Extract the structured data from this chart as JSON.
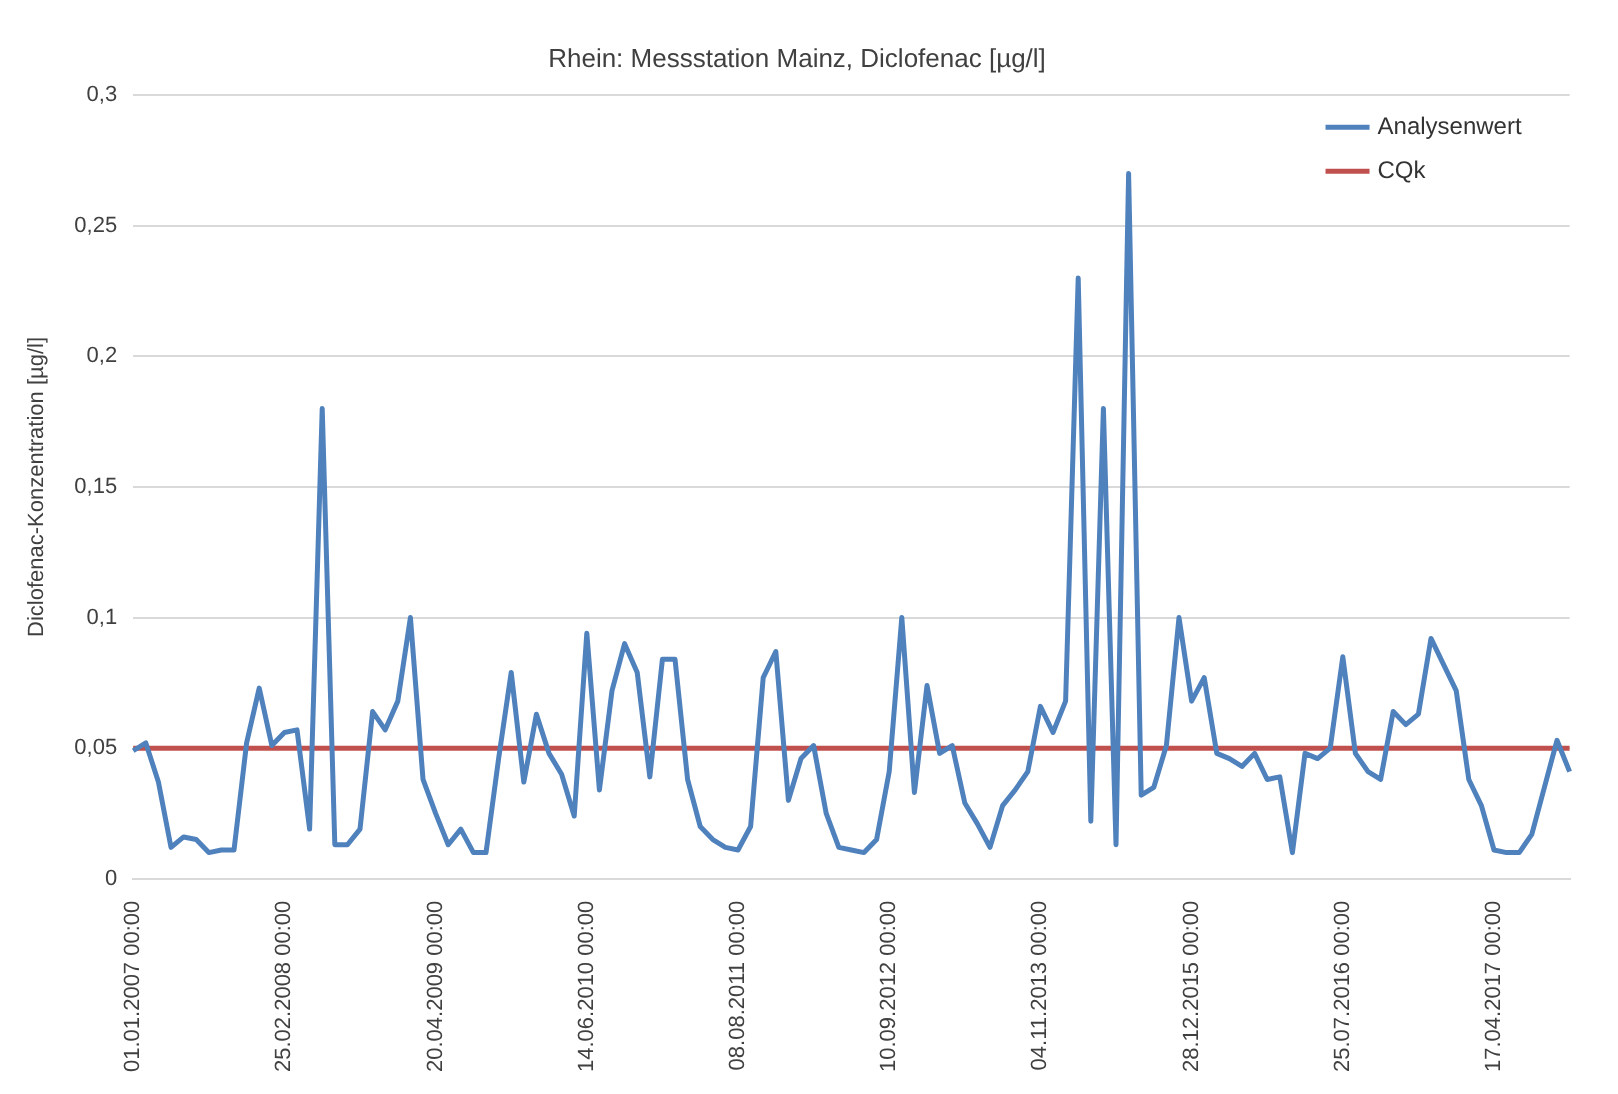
{
  "chart_data": {
    "type": "line",
    "title": "Rhein: Messstation Mainz, Diclofenac [µg/l]",
    "ylabel": "Diclofenac-Konzentration [µg/l]",
    "categories": [
      "01.01.2007 00:00",
      null,
      null,
      null,
      null,
      null,
      null,
      null,
      null,
      null,
      null,
      null,
      "25.02.2008 00:00",
      null,
      null,
      null,
      null,
      null,
      null,
      null,
      null,
      null,
      null,
      null,
      "20.04.2009 00:00",
      null,
      null,
      null,
      null,
      null,
      null,
      null,
      null,
      null,
      null,
      null,
      "14.06.2010 00:00",
      null,
      null,
      null,
      null,
      null,
      null,
      null,
      null,
      null,
      null,
      null,
      "08.08.2011 00:00",
      null,
      null,
      null,
      null,
      null,
      null,
      null,
      null,
      null,
      null,
      null,
      "10.09.2012 00:00",
      null,
      null,
      null,
      null,
      null,
      null,
      null,
      null,
      null,
      null,
      null,
      "04.11.2013 00:00",
      null,
      null,
      null,
      null,
      null,
      null,
      null,
      null,
      null,
      null,
      null,
      "28.12.2015 00:00",
      null,
      null,
      null,
      null,
      null,
      null,
      null,
      null,
      null,
      null,
      null,
      "25.07.2016 00:00",
      null,
      null,
      null,
      null,
      null,
      null,
      null,
      null,
      null,
      null,
      null,
      "17.04.2017 00:00",
      null,
      null,
      null,
      null,
      null,
      null
    ],
    "series": [
      {
        "name": "Analysenwert",
        "color": "#4f81bd",
        "values": [
          0.049,
          0.052,
          0.037,
          0.012,
          0.016,
          0.015,
          0.01,
          0.011,
          0.011,
          0.052,
          0.073,
          0.051,
          0.056,
          0.057,
          0.019,
          0.18,
          0.013,
          0.013,
          0.019,
          0.064,
          0.057,
          0.068,
          0.1,
          0.038,
          0.025,
          0.013,
          0.019,
          0.01,
          0.01,
          0.046,
          0.079,
          0.037,
          0.063,
          0.048,
          0.04,
          0.024,
          0.094,
          0.034,
          0.072,
          0.09,
          0.079,
          0.039,
          0.084,
          0.084,
          0.038,
          0.02,
          0.015,
          0.012,
          0.011,
          0.02,
          0.077,
          0.087,
          0.03,
          0.046,
          0.051,
          0.025,
          0.012,
          0.011,
          0.01,
          0.015,
          0.041,
          0.1,
          0.033,
          0.074,
          0.048,
          0.051,
          0.029,
          0.021,
          0.012,
          0.028,
          0.034,
          0.041,
          0.066,
          0.056,
          0.068,
          0.23,
          0.022,
          0.18,
          0.013,
          0.27,
          0.032,
          0.035,
          0.051,
          0.1,
          0.068,
          0.077,
          0.048,
          0.046,
          0.043,
          0.048,
          0.038,
          0.039,
          0.01,
          0.048,
          0.046,
          0.05,
          0.085,
          0.048,
          0.041,
          0.038,
          0.064,
          0.059,
          0.063,
          0.092,
          0.082,
          0.072,
          0.038,
          0.028,
          0.011,
          0.01,
          0.01,
          0.017,
          0.035,
          0.053,
          0.041
        ]
      },
      {
        "name": "CQk",
        "color": "#c0504d",
        "values": [
          0.05,
          0.05,
          0.05,
          0.05,
          0.05,
          0.05,
          0.05,
          0.05,
          0.05,
          0.05,
          0.05,
          0.05,
          0.05,
          0.05,
          0.05,
          0.05,
          0.05,
          0.05,
          0.05,
          0.05,
          0.05,
          0.05,
          0.05,
          0.05,
          0.05,
          0.05,
          0.05,
          0.05,
          0.05,
          0.05,
          0.05,
          0.05,
          0.05,
          0.05,
          0.05,
          0.05,
          0.05,
          0.05,
          0.05,
          0.05,
          0.05,
          0.05,
          0.05,
          0.05,
          0.05,
          0.05,
          0.05,
          0.05,
          0.05,
          0.05,
          0.05,
          0.05,
          0.05,
          0.05,
          0.05,
          0.05,
          0.05,
          0.05,
          0.05,
          0.05,
          0.05,
          0.05,
          0.05,
          0.05,
          0.05,
          0.05,
          0.05,
          0.05,
          0.05,
          0.05,
          0.05,
          0.05,
          0.05,
          0.05,
          0.05,
          0.05,
          0.05,
          0.05,
          0.05,
          0.05,
          0.05,
          0.05,
          0.05,
          0.05,
          0.05,
          0.05,
          0.05,
          0.05,
          0.05,
          0.05,
          0.05,
          0.05,
          0.05,
          0.05,
          0.05,
          0.05,
          0.05,
          0.05,
          0.05,
          0.05,
          0.05,
          0.05,
          0.05,
          0.05,
          0.05,
          0.05,
          0.05,
          0.05,
          0.05,
          0.05,
          0.05,
          0.05,
          0.05,
          0.05,
          0.05
        ]
      }
    ],
    "ylim": [
      0,
      0.3
    ],
    "yticks": [
      {
        "value": 0,
        "label": "0"
      },
      {
        "value": 0.05,
        "label": "0,05"
      },
      {
        "value": 0.1,
        "label": "0,1"
      },
      {
        "value": 0.15,
        "label": "0,15"
      },
      {
        "value": 0.2,
        "label": "0,2"
      },
      {
        "value": 0.25,
        "label": "0,25"
      },
      {
        "value": 0.3,
        "label": "0,3"
      }
    ],
    "grid": "y",
    "legend": "top right",
    "marker": "none",
    "line_style": "solid"
  }
}
